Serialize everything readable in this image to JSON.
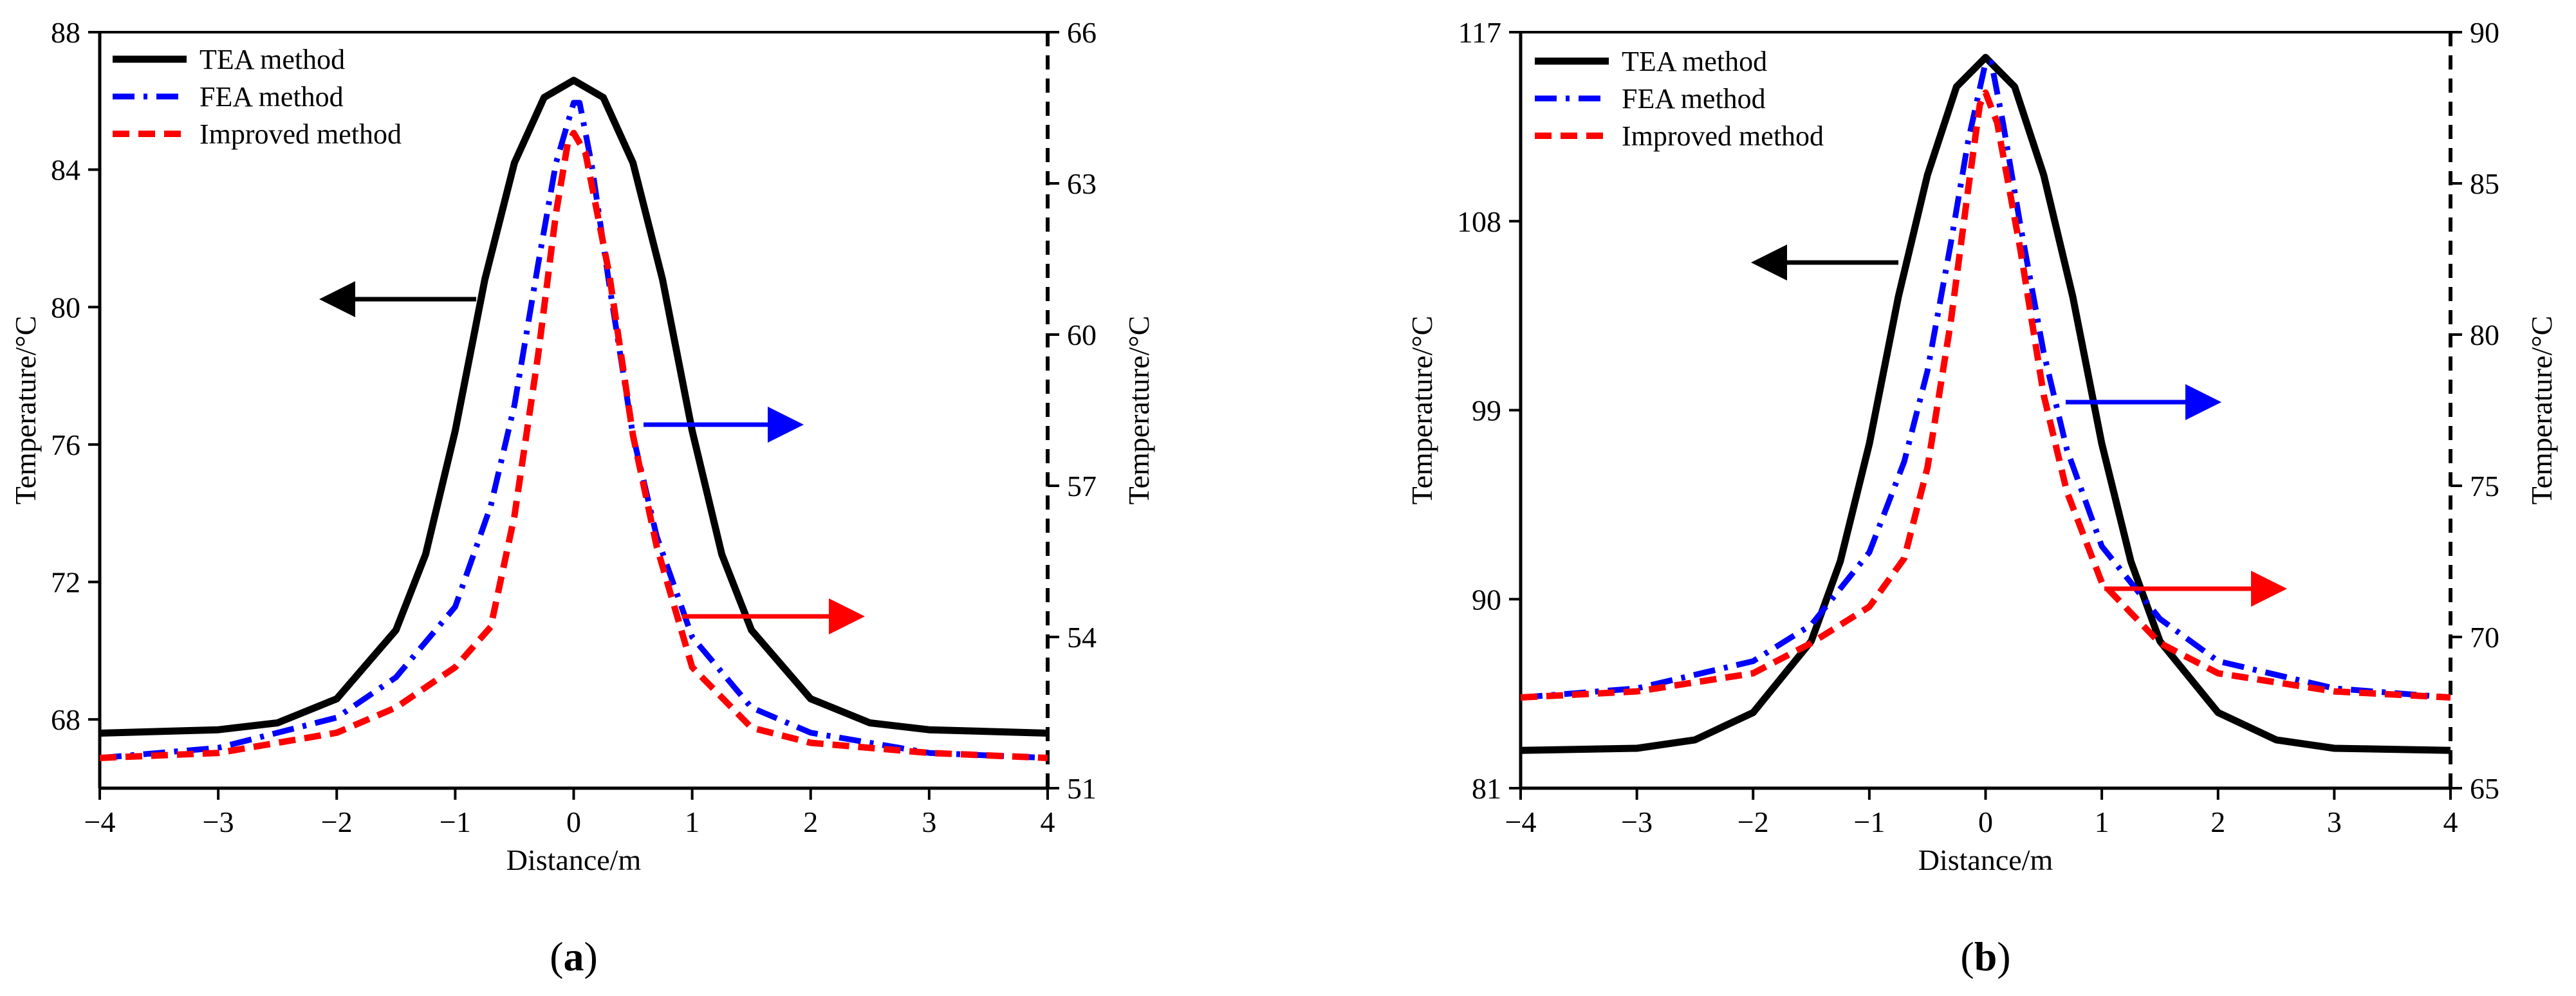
{
  "chart_data": [
    {
      "type": "line",
      "panel_label": {
        "open": "(",
        "letter": "a",
        "close": ")"
      },
      "xlabel": "Distance/m",
      "ylabel_left": "Temperature/°C",
      "ylabel_right": "Temperature/°C",
      "xlim": [
        -4,
        4
      ],
      "ylim_left": [
        66,
        88
      ],
      "ylim_right": [
        51,
        66
      ],
      "x_ticks": [
        -4,
        -3,
        -2,
        -1,
        0,
        1,
        2,
        3,
        4
      ],
      "x_tick_labels": [
        "−4",
        "−3",
        "−2",
        "−1",
        "0",
        "1",
        "2",
        "3",
        "4"
      ],
      "yleft_ticks": [
        68,
        72,
        76,
        80,
        84,
        88
      ],
      "yleft_tick_labels": [
        "68",
        "72",
        "76",
        "80",
        "84",
        "88"
      ],
      "yright_ticks": [
        51,
        54,
        57,
        60,
        63,
        66
      ],
      "yright_tick_labels": [
        "51",
        "54",
        "57",
        "60",
        "63",
        "66"
      ],
      "legend": [
        "TEA method",
        "FEA method",
        "Improved method"
      ],
      "legend_position": "top-left",
      "series": [
        {
          "name": "TEA method",
          "axis": "left",
          "color": "#000000",
          "style": "solid",
          "x": [
            -4,
            -3,
            -2.5,
            -2,
            -1.5,
            -1.25,
            -1,
            -0.75,
            -0.5,
            -0.25,
            0,
            0.25,
            0.5,
            0.75,
            1,
            1.25,
            1.5,
            2,
            2.5,
            3,
            4
          ],
          "y": [
            67.6,
            67.7,
            67.9,
            68.6,
            70.6,
            72.8,
            76.4,
            80.8,
            84.2,
            86.1,
            86.6,
            86.1,
            84.2,
            80.8,
            76.4,
            72.8,
            70.6,
            68.6,
            67.9,
            67.7,
            67.6
          ]
        },
        {
          "name": "FEA method",
          "axis": "right",
          "color": "#0000ff",
          "style": "dashdot",
          "x": [
            -4,
            -3,
            -2,
            -1.5,
            -1,
            -0.7,
            -0.5,
            -0.3,
            -0.15,
            0,
            0.05,
            0.15,
            0.3,
            0.5,
            0.7,
            1,
            1.5,
            2,
            3,
            4
          ],
          "y": [
            51.6,
            51.8,
            52.4,
            53.2,
            54.6,
            56.6,
            58.6,
            61.4,
            63.4,
            64.6,
            64.6,
            63.4,
            61.0,
            58.0,
            56.0,
            54.0,
            52.6,
            52.1,
            51.7,
            51.6
          ]
        },
        {
          "name": "Improved method",
          "axis": "right",
          "color": "#ff0000",
          "style": "dashed",
          "x": [
            -4,
            -3,
            -2,
            -1.5,
            -1,
            -0.7,
            -0.5,
            -0.3,
            -0.15,
            -0.05,
            0,
            0.1,
            0.3,
            0.5,
            0.7,
            1,
            1.5,
            2,
            3,
            4
          ],
          "y": [
            51.6,
            51.7,
            52.1,
            52.6,
            53.4,
            54.2,
            56.4,
            59.6,
            62.4,
            63.8,
            64.0,
            63.6,
            61.2,
            58.0,
            55.8,
            53.4,
            52.2,
            51.9,
            51.7,
            51.6
          ]
        }
      ],
      "annotations": [
        {
          "type": "arrow",
          "color": "#000000",
          "direction": "left",
          "points_to_axis": "left"
        },
        {
          "type": "arrow",
          "color": "#0000ff",
          "direction": "right",
          "points_to_axis": "right"
        },
        {
          "type": "arrow",
          "color": "#ff0000",
          "direction": "right",
          "points_to_axis": "right"
        }
      ]
    },
    {
      "type": "line",
      "panel_label": {
        "open": "(",
        "letter": "b",
        "close": ")"
      },
      "xlabel": "Distance/m",
      "ylabel_left": "Temperature/°C",
      "ylabel_right": "Temperature/°C",
      "xlim": [
        -4,
        4
      ],
      "ylim_left": [
        81,
        117
      ],
      "ylim_right": [
        65,
        90
      ],
      "x_ticks": [
        -4,
        -3,
        -2,
        -1,
        0,
        1,
        2,
        3,
        4
      ],
      "x_tick_labels": [
        "−4",
        "−3",
        "−2",
        "−1",
        "0",
        "1",
        "2",
        "3",
        "4"
      ],
      "yleft_ticks": [
        81,
        90,
        99,
        108,
        117
      ],
      "yleft_tick_labels": [
        "81",
        "90",
        "99",
        "108",
        "117"
      ],
      "yright_ticks": [
        65,
        70,
        75,
        80,
        85,
        90
      ],
      "yright_tick_labels": [
        "65",
        "70",
        "75",
        "80",
        "85",
        "90"
      ],
      "legend": [
        "TEA method",
        "FEA method",
        "Improved method"
      ],
      "legend_position": "top-left",
      "series": [
        {
          "name": "TEA method",
          "axis": "left",
          "color": "#000000",
          "style": "solid",
          "x": [
            -4,
            -3,
            -2.5,
            -2,
            -1.5,
            -1.25,
            -1,
            -0.75,
            -0.5,
            -0.25,
            0,
            0.25,
            0.5,
            0.75,
            1,
            1.25,
            1.5,
            2,
            2.5,
            3,
            4
          ],
          "y": [
            82.8,
            82.9,
            83.3,
            84.6,
            88.0,
            91.8,
            97.4,
            104.4,
            110.2,
            114.4,
            115.8,
            114.4,
            110.2,
            104.4,
            97.4,
            91.8,
            88.0,
            84.6,
            83.3,
            82.9,
            82.8
          ]
        },
        {
          "name": "FEA method",
          "axis": "right",
          "color": "#0000ff",
          "style": "dashdot",
          "x": [
            -4,
            -3,
            -2,
            -1.5,
            -1,
            -0.7,
            -0.5,
            -0.3,
            -0.15,
            0,
            0.05,
            0.15,
            0.3,
            0.5,
            0.7,
            1,
            1.5,
            2,
            3,
            4
          ],
          "y": [
            68.0,
            68.3,
            69.2,
            70.4,
            72.8,
            75.8,
            78.8,
            83.0,
            86.4,
            89.0,
            89.0,
            87.0,
            83.6,
            79.4,
            76.2,
            73.0,
            70.6,
            69.2,
            68.3,
            68.0
          ]
        },
        {
          "name": "Improved method",
          "axis": "right",
          "color": "#ff0000",
          "style": "dashed",
          "x": [
            -4,
            -3,
            -2,
            -1.5,
            -1,
            -0.7,
            -0.5,
            -0.3,
            -0.15,
            -0.05,
            0,
            0.1,
            0.3,
            0.5,
            0.7,
            1,
            1.5,
            2,
            3,
            4
          ],
          "y": [
            68.0,
            68.2,
            68.8,
            69.8,
            71.0,
            72.6,
            75.6,
            80.4,
            84.8,
            87.6,
            88.0,
            87.0,
            82.8,
            78.0,
            74.8,
            71.8,
            69.8,
            68.8,
            68.2,
            68.0
          ]
        }
      ],
      "annotations": [
        {
          "type": "arrow",
          "color": "#000000",
          "direction": "left",
          "points_to_axis": "left"
        },
        {
          "type": "arrow",
          "color": "#0000ff",
          "direction": "right",
          "points_to_axis": "right"
        },
        {
          "type": "arrow",
          "color": "#ff0000",
          "direction": "right",
          "points_to_axis": "right"
        }
      ]
    }
  ]
}
